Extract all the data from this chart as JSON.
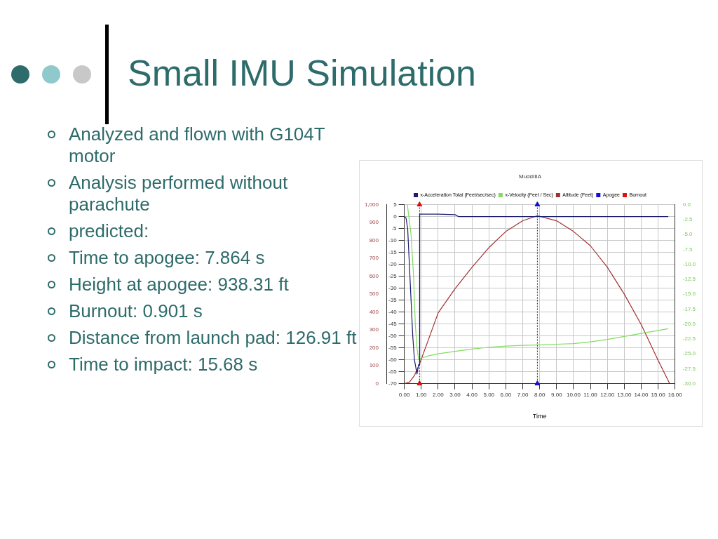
{
  "chart_data": {
    "type": "line",
    "title": "Small IMU Simulation",
    "subtitle": "MuddIIIA",
    "xlabel": "Time",
    "annotations": [
      "Analyzed and flown with G104T motor",
      "Analysis performed without parachute",
      "predicted:",
      "Time to apogee: 7.864 s",
      "Height at apogee: 938.31 ft",
      "Burnout: 0.901 s",
      "Distance from launch pad: 126.91 ft",
      "Time to impact: 15.68 s"
    ],
    "series": [
      {
        "name": "x-Acceleration Total (Feet/sec/sec)",
        "color": "#1c1c70",
        "axis": "y2",
        "x": [
          0,
          0.1,
          0.2,
          0.3,
          0.4,
          0.5,
          0.6,
          0.75,
          0.85,
          0.9,
          0.91,
          2,
          3,
          3.2,
          15.6
        ],
        "values": [
          0,
          -0.5,
          -5,
          -20,
          -35,
          -50,
          -60,
          -66,
          -62,
          -62,
          1,
          1,
          0.8,
          0,
          0
        ]
      },
      {
        "name": "x-Velocity (Feet / Sec)",
        "color": "#80dd60",
        "axis": "y3",
        "x": [
          0.18,
          0.4,
          0.55,
          0.65,
          0.75,
          0.85,
          0.9,
          1.5,
          2,
          3,
          4,
          5,
          6,
          7,
          8,
          9,
          10,
          11,
          12,
          13,
          14,
          15,
          15.6
        ],
        "values": [
          0,
          -5,
          -12,
          -20,
          -24,
          -26,
          -25.8,
          -25.3,
          -25,
          -24.6,
          -24.2,
          -23.9,
          -23.7,
          -23.6,
          -23.5,
          -23.4,
          -23.3,
          -23,
          -22.6,
          -22.1,
          -21.6,
          -21.1,
          -20.8
        ]
      },
      {
        "name": "Altitude (Feet)",
        "color": "#a03030",
        "axis": "y",
        "x": [
          0,
          0.3,
          0.6,
          0.9,
          1,
          2,
          3,
          4,
          5,
          6,
          7,
          7.864,
          9,
          10,
          11,
          12,
          13,
          14,
          15,
          15.68
        ],
        "values": [
          0,
          8,
          45,
          110,
          135,
          395,
          530,
          650,
          760,
          850,
          910,
          938,
          910,
          850,
          770,
          650,
          500,
          330,
          130,
          0
        ]
      },
      {
        "name": "Apogee",
        "type": "scatter",
        "marker": "triangle",
        "color": "#1010d0",
        "axis": "y",
        "x": [
          7.864,
          7.864
        ],
        "values": [
          1000,
          0
        ]
      },
      {
        "name": "Burnout",
        "type": "scatter",
        "marker": "triangle",
        "color": "#e01010",
        "axis": "y",
        "x": [
          0.901,
          0.901
        ],
        "values": [
          1000,
          0
        ]
      }
    ],
    "ref_lines": [
      {
        "axis": "x",
        "value": 7.864,
        "color": "#222233",
        "line_style": "dotted"
      },
      {
        "axis": "x",
        "value": 0.901,
        "color": "#222233",
        "line_style": "dotted"
      }
    ],
    "xlim": [
      0,
      16
    ],
    "xticks": [
      {
        "value": 0,
        "label": "0.00"
      },
      {
        "value": 1,
        "label": "1.00"
      },
      {
        "value": 2,
        "label": "2.00"
      },
      {
        "value": 3,
        "label": "3.00"
      },
      {
        "value": 4,
        "label": "4.00"
      },
      {
        "value": 5,
        "label": "5.00"
      },
      {
        "value": 6,
        "label": "6.00"
      },
      {
        "value": 7,
        "label": "7.00"
      },
      {
        "value": 8,
        "label": "8.00"
      },
      {
        "value": 9,
        "label": "9.00"
      },
      {
        "value": 10,
        "label": "10.00"
      },
      {
        "value": 11,
        "label": "11.00"
      },
      {
        "value": 12,
        "label": "12.00"
      },
      {
        "value": 13,
        "label": "13.00"
      },
      {
        "value": 14,
        "label": "14.00"
      },
      {
        "value": 15,
        "label": "15.00"
      },
      {
        "value": 16,
        "label": "16.00"
      }
    ],
    "ylim": [
      0,
      1000
    ],
    "yticks": [
      0,
      100,
      200,
      300,
      400,
      500,
      600,
      700,
      800,
      900,
      {
        "value": 1000,
        "label": "1,000"
      }
    ],
    "y2lim": [
      -70,
      5
    ],
    "y2ticks": [
      -70,
      -65,
      -60,
      -55,
      -50,
      -45,
      -40,
      -35,
      -30,
      -25,
      -20,
      -15,
      -10,
      -5,
      0,
      5
    ],
    "y3lim": [
      -30,
      0
    ],
    "y3ticks": [
      {
        "value": -30,
        "label": "-30.0"
      },
      {
        "value": -27.5,
        "label": "-27.5"
      },
      {
        "value": -25,
        "label": "-25.0"
      },
      {
        "value": -22.5,
        "label": "-22.5"
      },
      {
        "value": -20,
        "label": "-20.0"
      },
      {
        "value": -17.5,
        "label": "-17.5"
      },
      {
        "value": -15,
        "label": "-15.0"
      },
      {
        "value": -12.5,
        "label": "-12.5"
      },
      {
        "value": -10,
        "label": "-10.0"
      },
      {
        "value": -7.5,
        "label": "-7.5"
      },
      {
        "value": -5,
        "label": "-5.0"
      },
      {
        "value": -2.5,
        "label": "-2.5"
      },
      {
        "value": 0,
        "label": "0.0"
      }
    ],
    "grid": true,
    "legend": "top",
    "marker": "none",
    "line_style": "solid"
  }
}
